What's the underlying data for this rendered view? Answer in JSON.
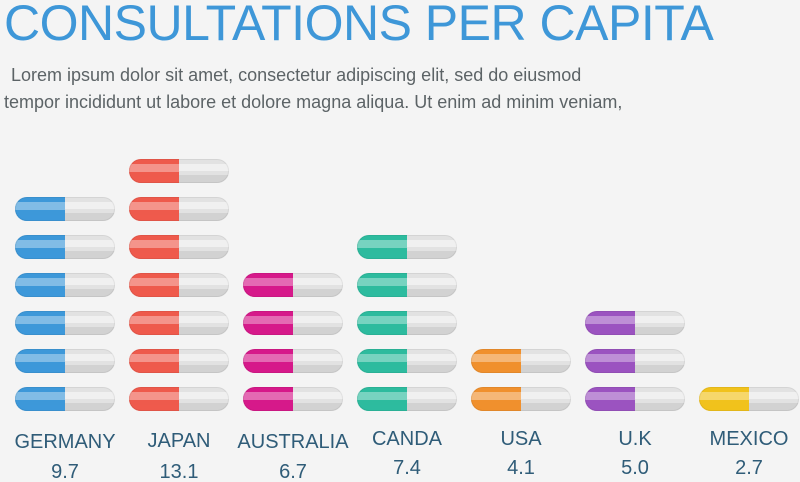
{
  "header": {
    "title": "CONSULTATIONS PER CAPITA",
    "subtitle_line1": "Lorem ipsum dolor sit amet, consectetur adipiscing elit, sed do eiusmod",
    "subtitle_line2": "tempor incididunt ut labore et dolore magna aliqua. Ut enim ad minim veniam,"
  },
  "chart_data": {
    "type": "bar",
    "categories": [
      "GERMANY",
      "JAPAN",
      "AUSTRALIA",
      "CANDA",
      "USA",
      "U.K",
      "MEXICO"
    ],
    "values": [
      9.7,
      13.1,
      6.7,
      7.4,
      4.1,
      5.0,
      2.7
    ],
    "value_labels": [
      "9.7",
      "13.1",
      "6.7",
      "7.4",
      "4.1",
      "5.0",
      "2.7"
    ],
    "pill_counts": [
      6,
      7,
      4,
      5,
      2,
      3,
      1
    ],
    "colors": [
      "#3d98d9",
      "#ee5a4c",
      "#d6198a",
      "#2dbb9e",
      "#f0902d",
      "#9b53c0",
      "#f1c21c"
    ],
    "pill_empty_color": "#e2e2e2",
    "grid": false,
    "legend": "none"
  }
}
